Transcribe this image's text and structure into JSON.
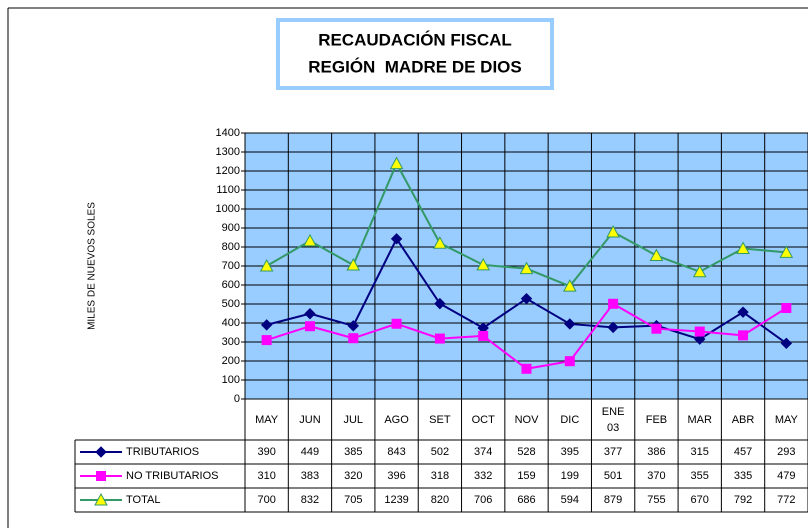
{
  "chart_data": {
    "type": "line",
    "title": "RECAUDACIÓN FISCAL",
    "subtitle": "REGIÓN  MADRE DE DIOS",
    "ylabel": "MILES DE NUEVOS SOLES",
    "categories": [
      "MAY",
      "JUN",
      "JUL",
      "AGO",
      "SET",
      "OCT",
      "NOV",
      "DIC",
      "ENE 03",
      "FEB",
      "MAR",
      "ABR",
      "MAY"
    ],
    "series": [
      {
        "name": "TRIBUTARIOS",
        "color": "#000080",
        "marker": "diamond",
        "values": [
          390,
          449,
          385,
          843,
          502,
          374,
          528,
          395,
          377,
          386,
          315,
          457,
          293
        ]
      },
      {
        "name": "NO TRIBUTARIOS",
        "color": "#ff00ff",
        "marker": "square",
        "values": [
          310,
          383,
          320,
          396,
          318,
          332,
          159,
          199,
          501,
          370,
          355,
          335,
          479
        ]
      },
      {
        "name": "TOTAL",
        "color": "#339966",
        "marker": "triangle",
        "values": [
          700,
          832,
          705,
          1239,
          820,
          706,
          686,
          594,
          879,
          755,
          670,
          792,
          772
        ]
      }
    ],
    "ylim": [
      0,
      1400
    ],
    "yticks": [
      0,
      100,
      200,
      300,
      400,
      500,
      600,
      700,
      800,
      900,
      1000,
      1100,
      1200,
      1300,
      1400
    ],
    "grid": true,
    "plot_color": "#99ccff"
  }
}
